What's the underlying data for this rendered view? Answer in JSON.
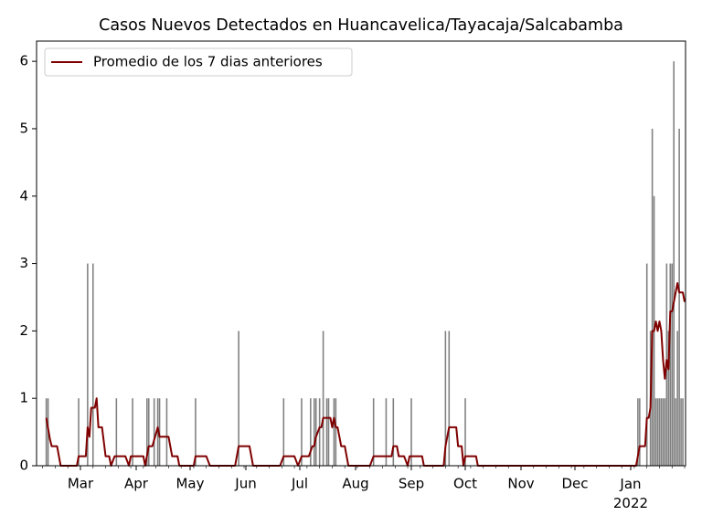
{
  "chart_data": {
    "type": "bar",
    "title": "Casos Nuevos Detectados en Huancavelica/Tayacaja/Salcabamba",
    "xlim": [
      3.6,
      364.5
    ],
    "xticks": [
      {
        "value": 28,
        "label": "Mar"
      },
      {
        "value": 59,
        "label": "Apr"
      },
      {
        "value": 89,
        "label": "May"
      },
      {
        "value": 120,
        "label": "Jun"
      },
      {
        "value": 150,
        "label": "Jul"
      },
      {
        "value": 181,
        "label": "Aug"
      },
      {
        "value": 212,
        "label": "Sep"
      },
      {
        "value": 242,
        "label": "Oct"
      },
      {
        "value": 273,
        "label": "Nov"
      },
      {
        "value": 303,
        "label": "Dec"
      },
      {
        "value": 334,
        "label": "Jan\n2022"
      }
    ],
    "ylim": [
      0,
      6.3
    ],
    "yticks": [
      0,
      1,
      2,
      3,
      4,
      5,
      6
    ],
    "legend": "upper left",
    "series": [
      {
        "type": "bar",
        "color": "#808080",
        "x": [
          9,
          10,
          27,
          32,
          35,
          48,
          57,
          65,
          66,
          69,
          71,
          72,
          76,
          92,
          116,
          141,
          151,
          156,
          158,
          159,
          161,
          163,
          165,
          166,
          169,
          170,
          191,
          198,
          202,
          212,
          231,
          233,
          242,
          338,
          339,
          343,
          345,
          346,
          347,
          348,
          349,
          350,
          351,
          352,
          353,
          354,
          355,
          356,
          357,
          358,
          359,
          360,
          361,
          362,
          363
        ],
        "values": [
          1,
          1,
          1,
          3,
          3,
          1,
          1,
          1,
          1,
          1,
          1,
          1,
          1,
          1,
          2,
          1,
          1,
          1,
          1,
          1,
          1,
          2,
          1,
          1,
          1,
          1,
          1,
          1,
          1,
          1,
          2,
          2,
          1,
          1,
          1,
          3,
          2,
          5,
          4,
          1,
          1,
          1,
          1,
          1,
          1,
          3,
          2,
          3,
          3,
          6,
          1,
          2,
          5,
          1,
          1
        ]
      },
      {
        "type": "line",
        "name": "Promedio de los 7 dias anteriores",
        "color": "#800000",
        "x": [
          9,
          11,
          12,
          15,
          17,
          26,
          27,
          31,
          32,
          33,
          34,
          36,
          37,
          38,
          40,
          42,
          44,
          45,
          47,
          53,
          55,
          56,
          63,
          64,
          66,
          68,
          71,
          72,
          77,
          79,
          82,
          83,
          91,
          92,
          98,
          100,
          114,
          116,
          122,
          124,
          139,
          141,
          147,
          149,
          151,
          155,
          157,
          158,
          159,
          161,
          162,
          163,
          167,
          168,
          169,
          170,
          171,
          173,
          175,
          177,
          189,
          191,
          201,
          202,
          204,
          205,
          208,
          210,
          211,
          218,
          219,
          230,
          231,
          233,
          237,
          238,
          240,
          241,
          242,
          248,
          249,
          337,
          339,
          342,
          343,
          344,
          345,
          346,
          347,
          348,
          349,
          350,
          351,
          352,
          353,
          354,
          355,
          356,
          357,
          358,
          359,
          360,
          361,
          362,
          363,
          364
        ],
        "values": [
          0.71,
          0.4,
          0.29,
          0.29,
          0,
          0,
          0.14,
          0.14,
          0.57,
          0.43,
          0.86,
          0.86,
          1.0,
          0.57,
          0.57,
          0.14,
          0.14,
          0,
          0.14,
          0.14,
          0,
          0.14,
          0.14,
          0,
          0.29,
          0.29,
          0.57,
          0.43,
          0.43,
          0.14,
          0.14,
          0,
          0,
          0.14,
          0.14,
          0,
          0,
          0.29,
          0.29,
          0,
          0,
          0.14,
          0.14,
          0,
          0.14,
          0.14,
          0.29,
          0.29,
          0.43,
          0.57,
          0.57,
          0.71,
          0.71,
          0.57,
          0.71,
          0.57,
          0.57,
          0.29,
          0.29,
          0,
          0,
          0.14,
          0.14,
          0.29,
          0.29,
          0.14,
          0.14,
          0,
          0.14,
          0.14,
          0,
          0,
          0.29,
          0.57,
          0.57,
          0.29,
          0.29,
          0,
          0.14,
          0.14,
          0,
          0,
          0.29,
          0.29,
          0.71,
          0.71,
          0.86,
          2.0,
          2.0,
          2.14,
          2.0,
          2.14,
          2.0,
          1.57,
          1.29,
          1.57,
          1.43,
          2.29,
          2.29,
          2.43,
          2.57,
          2.71,
          2.57,
          2.57,
          2.57,
          2.43
        ]
      }
    ]
  }
}
